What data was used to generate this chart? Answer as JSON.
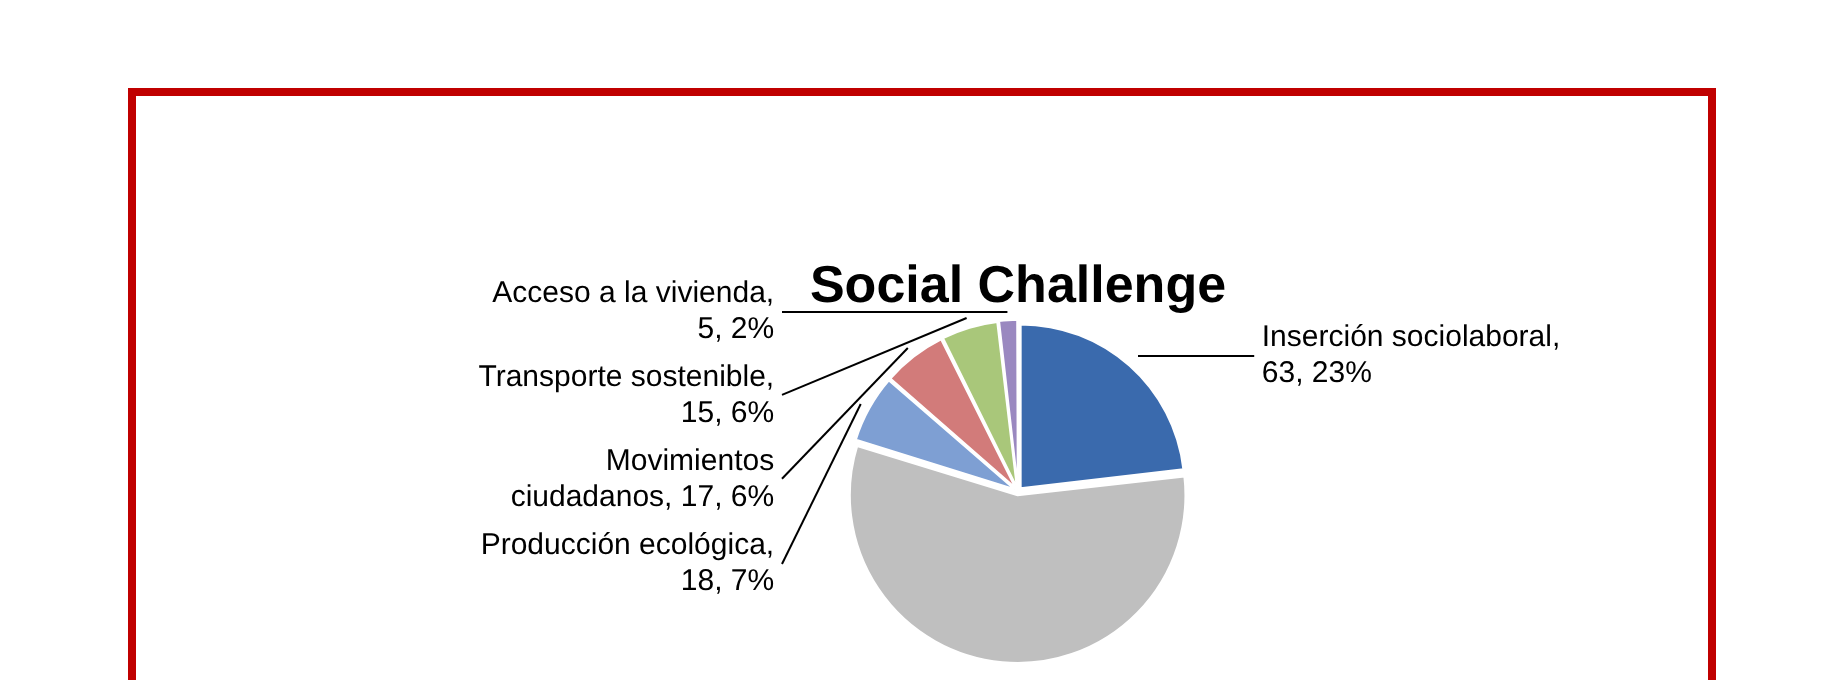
{
  "chart_data": {
    "type": "pie",
    "title": "Social Challenge",
    "categories": [
      "Inserción sociolaboral",
      null,
      "Producción ecológica",
      "Movimientos ciudadanos",
      "Transporte sostenible",
      "Acceso a la vivienda"
    ],
    "values": [
      63,
      154,
      18,
      17,
      15,
      5
    ],
    "value_labels": [
      ", 63, 23%",
      null,
      ", 18, 7%",
      ", 17, 6%",
      ", 15, 6%",
      ", 5, 2%"
    ],
    "colors": [
      "#3a6aad",
      "#bfbfbf",
      "#7e9fd3",
      "#d27b7a",
      "#a9c77a",
      "#9a88c0"
    ],
    "legend": false
  }
}
